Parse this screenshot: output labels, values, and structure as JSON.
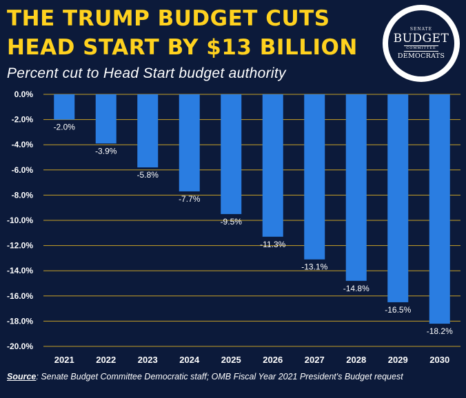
{
  "header": {
    "title_line1": "THE TRUMP BUDGET CUTS",
    "title_line2": "HEAD START BY $13 BILLION",
    "subtitle": "Percent cut to Head Start budget authority"
  },
  "logo": {
    "senate": "SENATE",
    "budget": "BUDGET",
    "committee": "COMMITTEE",
    "democrats": "DEMOCRATS"
  },
  "source": {
    "label": "Source",
    "text": ": Senate Budget Committee Democratic staff; OMB Fiscal Year 2021 President's Budget request"
  },
  "colors": {
    "background": "#0c1a3a",
    "title": "#ffd21f",
    "bar": "#2a7de1",
    "gridline": "#c9a227",
    "text": "#ffffff"
  },
  "chart_data": {
    "type": "bar",
    "title": "Percent cut to Head Start budget authority",
    "xlabel": "",
    "ylabel": "",
    "categories": [
      "2021",
      "2022",
      "2023",
      "2024",
      "2025",
      "2026",
      "2027",
      "2028",
      "2029",
      "2030"
    ],
    "values": [
      -2.0,
      -3.9,
      -5.8,
      -7.7,
      -9.5,
      -11.3,
      -13.1,
      -14.8,
      -16.5,
      -18.2
    ],
    "data_labels": [
      "-2.0%",
      "-3.9%",
      "-5.8%",
      "-7.7%",
      "-9.5%",
      "-11.3%",
      "-13.1%",
      "-14.8%",
      "-16.5%",
      "-18.2%"
    ],
    "ylim": [
      -20,
      0
    ],
    "yticks": [
      0,
      -2,
      -4,
      -6,
      -8,
      -10,
      -12,
      -14,
      -16,
      -18,
      -20
    ],
    "ytick_labels": [
      "0.0%",
      "-2.0%",
      "-4.0%",
      "-6.0%",
      "-8.0%",
      "-10.0%",
      "-12.0%",
      "-14.0%",
      "-16.0%",
      "-18.0%",
      "-20.0%"
    ],
    "grid": true,
    "legend": "none"
  }
}
